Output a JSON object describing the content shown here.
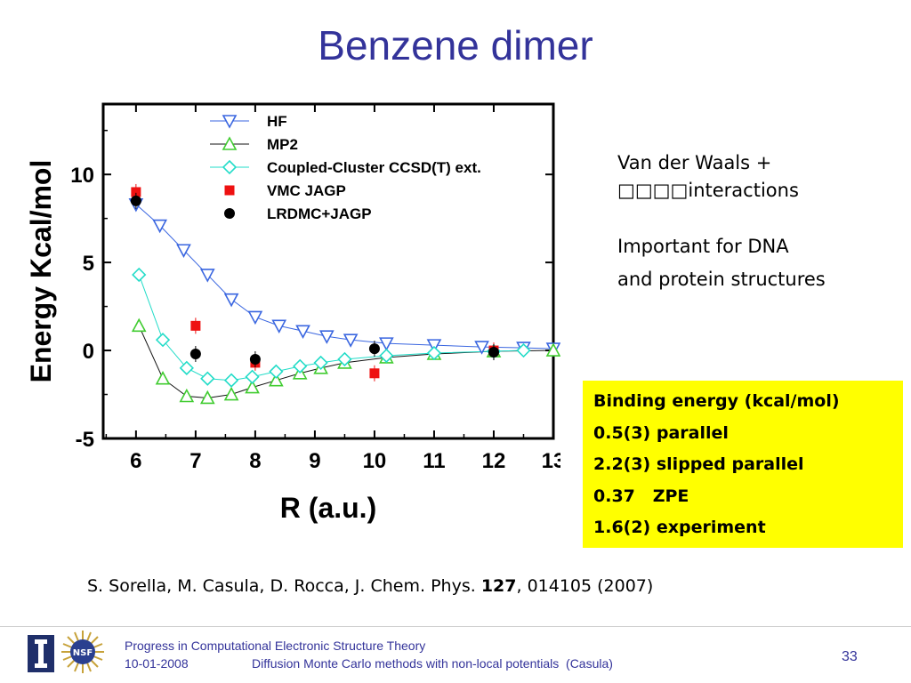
{
  "slide": {
    "title": "Benzene dimer",
    "vdw_line1": "Van der Waals +",
    "vdw_line2": "□□□□interactions",
    "important_line1": "Important for DNA",
    "important_line2": "and protein structures",
    "binding_box": [
      "Binding energy (kcal/mol)",
      "0.5(3) parallel",
      "2.2(3) slipped parallel",
      "0.37   ZPE",
      "1.6(2) experiment"
    ],
    "citation_pre": "S. Sorella, M. Casula, D. Rocca, J. Chem. Phys. ",
    "citation_bold": "127",
    "citation_post": ", 014105 (2007)",
    "footer_line1": "Progress in Computational Electronic Structure Theory",
    "footer_date": "10-01-2008",
    "footer_line2": "Diffusion Monte Carlo methods with non-local potentials  (Casula)",
    "page_number": "33",
    "nsf_logo_text": "NSF",
    "colors": {
      "title": "#33339a",
      "highlight": "#ffff00"
    }
  },
  "chart_data": {
    "type": "scatter",
    "xlabel": "R (a.u.)",
    "ylabel": "Energy Kcal/mol",
    "xlim": [
      5.45,
      13
    ],
    "ylim": [
      -5,
      14
    ],
    "xticks": [
      6,
      7,
      8,
      9,
      10,
      11,
      12,
      13
    ],
    "yticks": [
      -5,
      0,
      5,
      10
    ],
    "legend_position": "top-right",
    "series": [
      {
        "name": "HF",
        "marker": "triangle-down",
        "color": "#3a66e0",
        "line": true,
        "x": [
          6.0,
          6.4,
          6.8,
          7.2,
          7.6,
          8.0,
          8.4,
          8.8,
          9.2,
          9.6,
          10.2,
          11.0,
          11.8,
          12.5,
          13.0
        ],
        "y": [
          8.3,
          7.1,
          5.7,
          4.3,
          2.9,
          1.9,
          1.4,
          1.1,
          0.8,
          0.6,
          0.4,
          0.3,
          0.2,
          0.15,
          0.1
        ]
      },
      {
        "name": "MP2",
        "marker": "triangle-up",
        "color": "#40cc30",
        "line": true,
        "line_color": "#111111",
        "x": [
          6.05,
          6.45,
          6.85,
          7.2,
          7.6,
          7.95,
          8.35,
          8.75,
          9.1,
          9.5,
          10.2,
          11.0,
          12.0,
          13.0
        ],
        "y": [
          1.4,
          -1.6,
          -2.6,
          -2.7,
          -2.5,
          -2.1,
          -1.7,
          -1.3,
          -1.0,
          -0.7,
          -0.4,
          -0.2,
          -0.05,
          0.0
        ]
      },
      {
        "name": "Coupled-Cluster CCSD(T) ext.",
        "marker": "diamond",
        "color": "#22dcc8",
        "line": true,
        "x": [
          6.05,
          6.45,
          6.85,
          7.2,
          7.6,
          7.95,
          8.35,
          8.75,
          9.1,
          9.5,
          10.2,
          11.0,
          12.0,
          12.5
        ],
        "y": [
          4.3,
          0.6,
          -1.0,
          -1.6,
          -1.7,
          -1.5,
          -1.2,
          -0.9,
          -0.7,
          -0.5,
          -0.3,
          -0.15,
          -0.05,
          0.0
        ]
      },
      {
        "name": "VMC JAGP",
        "marker": "square",
        "color": "#ee1111",
        "line": false,
        "x": [
          6.0,
          7.0,
          8.0,
          10.0,
          12.0
        ],
        "y": [
          9.0,
          1.4,
          -0.7,
          -1.3,
          0.0
        ]
      },
      {
        "name": "LRDMC+JAGP",
        "marker": "circle",
        "color": "#000000",
        "line": false,
        "x": [
          6.0,
          7.0,
          8.0,
          10.0,
          12.0
        ],
        "y": [
          8.5,
          -0.2,
          -0.5,
          0.1,
          -0.1
        ]
      }
    ]
  }
}
